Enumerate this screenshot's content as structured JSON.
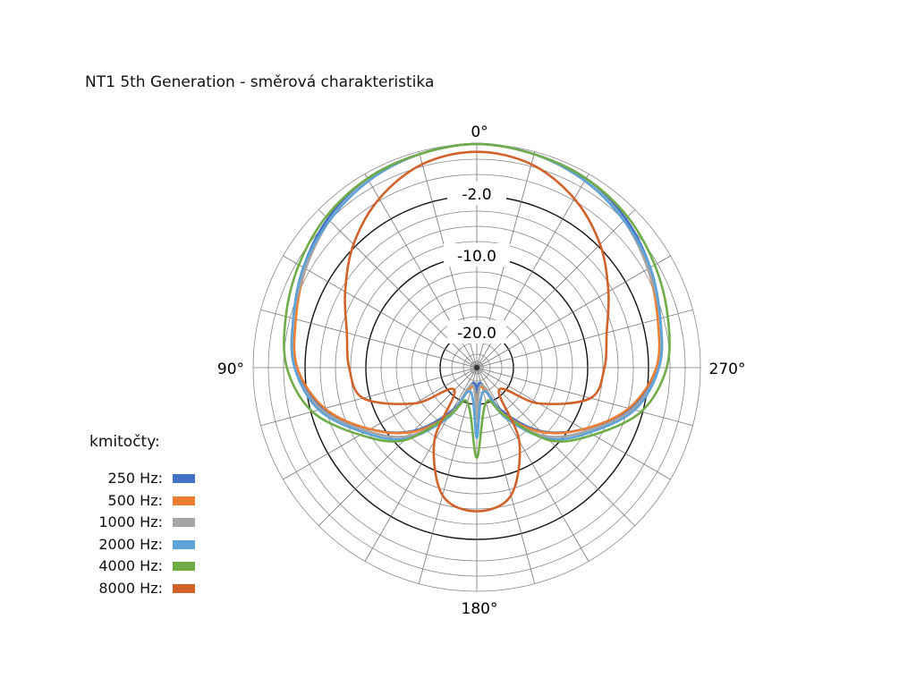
{
  "chart_data": {
    "type": "polar-line",
    "title": "NT1 5th Generation - směrová charakteristika",
    "angle_labels": {
      "top": "0°",
      "left": "90°",
      "right": "270°",
      "bottom": "180°"
    },
    "ring_labels": [
      "-2.0",
      "-10.0",
      "-20.0"
    ],
    "ring_label_values_db": [
      -2,
      -10,
      -20
    ],
    "angle_step_deg": 15,
    "angles_deg": [
      0,
      15,
      30,
      45,
      60,
      75,
      90,
      105,
      120,
      135,
      150,
      165,
      180
    ],
    "symmetric": true,
    "legend_title": "kmitočty:",
    "series": [
      {
        "name": "250 Hz:",
        "color": "#4472c4",
        "db": [
          0,
          -0.1,
          -0.2,
          -0.5,
          -0.9,
          -1.3,
          -1.6,
          -3.7,
          -8.4,
          -12.9,
          -18.3,
          -22.8,
          -21.6
        ]
      },
      {
        "name": "500 Hz:",
        "color": "#ed7d31",
        "db": [
          0,
          -0.1,
          -0.3,
          -0.6,
          -1.0,
          -1.4,
          -1.7,
          -3.9,
          -8.4,
          -12.7,
          -17.7,
          -22.3,
          -20.4
        ]
      },
      {
        "name": "1000 Hz:",
        "color": "#a5a5a5",
        "db": [
          0,
          -0.1,
          -0.3,
          -0.6,
          -1.0,
          -1.3,
          -1.6,
          -3.4,
          -7.9,
          -11.9,
          -17.5,
          -22.6,
          -18.0
        ]
      },
      {
        "name": "2000 Hz:",
        "color": "#5ba3d9",
        "db": [
          0,
          -0.1,
          -0.3,
          -0.6,
          -0.9,
          -1.3,
          -1.6,
          -3.1,
          -7.5,
          -11.4,
          -17.1,
          -21.6,
          -15.5
        ]
      },
      {
        "name": "4000 Hz:",
        "color": "#70ad47",
        "db": [
          0,
          -0.1,
          -0.2,
          -0.4,
          -0.7,
          -1.0,
          -1.3,
          -2.2,
          -6.9,
          -11.1,
          -17.5,
          -20.1,
          -12.8
        ]
      },
      {
        "name": "8000 Hz:",
        "color": "#d0622a",
        "db": [
          -0.3,
          -0.5,
          -1.1,
          -1.9,
          -4.6,
          -6.9,
          -7.8,
          -9.1,
          -15.3,
          -20.7,
          -13.5,
          -7.2,
          -5.7
        ]
      }
    ]
  }
}
